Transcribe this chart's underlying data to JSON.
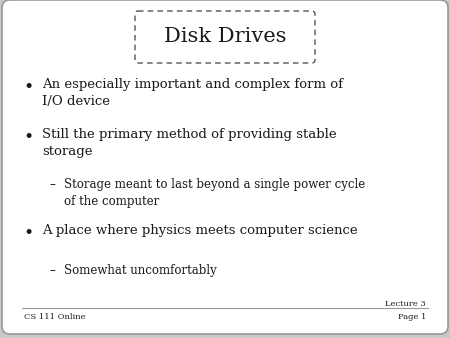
{
  "title": "Disk Drives",
  "outer_bg": "#c8c8c8",
  "slide_bg": "#ffffff",
  "slide_border_color": "#999999",
  "title_border_color": "#555555",
  "text_color": "#1a1a1a",
  "footer_left": "CS 111 Online",
  "footer_right_line1": "Lecture 3",
  "footer_right_line2": "Page 1",
  "bullet_items": [
    {
      "level": 0,
      "text": "An especially important and complex form of\nI/O device"
    },
    {
      "level": 0,
      "text": "Still the primary method of providing stable\nstorage"
    },
    {
      "level": 1,
      "text": "Storage meant to last beyond a single power cycle\nof the computer"
    },
    {
      "level": 0,
      "text": "A place where physics meets computer science"
    },
    {
      "level": 1,
      "text": "Somewhat uncomfortably"
    }
  ],
  "title_fontsize": 15,
  "bullet_fontsize": 9.5,
  "sub_bullet_fontsize": 8.5,
  "footer_fontsize": 6
}
